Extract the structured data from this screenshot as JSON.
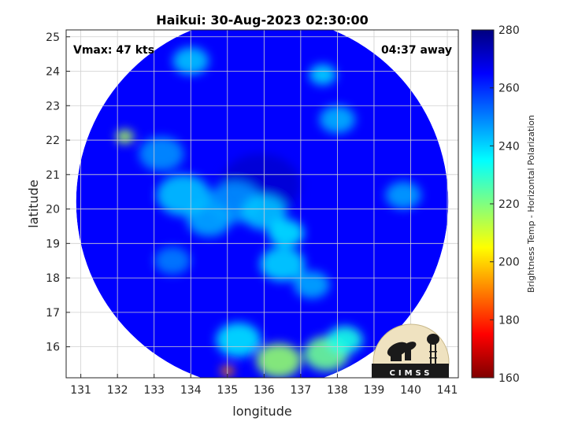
{
  "chart_data": {
    "type": "heatmap",
    "title": "Haikui: 30-Aug-2023 02:30:00",
    "xlabel": "longitude",
    "ylabel": "latitude",
    "xlim": [
      130.6,
      141.3
    ],
    "ylim": [
      15.1,
      25.2
    ],
    "x_ticks": [
      "131",
      "132",
      "133",
      "134",
      "135",
      "136",
      "137",
      "138",
      "139",
      "140",
      "141"
    ],
    "y_ticks": [
      "16",
      "17",
      "18",
      "19",
      "20",
      "21",
      "22",
      "23",
      "24",
      "25"
    ],
    "grid": true,
    "annotations": {
      "vmax": "Vmax: 47 kts",
      "away": "04:37 away"
    },
    "colorbar": {
      "label": "Brightness Temp - Horizontal Polarization",
      "range": [
        160,
        280
      ],
      "ticks": [
        "160",
        "180",
        "200",
        "220",
        "240",
        "260",
        "280"
      ],
      "colors": [
        "#7f0000",
        "#ff0000",
        "#ff8000",
        "#ffff00",
        "#80ff80",
        "#00ffff",
        "#0080ff",
        "#0000ff",
        "#00007f"
      ]
    },
    "swath": {
      "center": [
        135.95,
        20.2
      ],
      "radius_deg_lat": 5.4,
      "background_temp": 265,
      "features": [
        {
          "lon": 135.9,
          "lat": 20.7,
          "temp": 270,
          "size": 0.9
        },
        {
          "lon": 135.2,
          "lat": 20.2,
          "temp": 248,
          "size": 0.6
        },
        {
          "lon": 136.0,
          "lat": 19.9,
          "temp": 242,
          "size": 0.5
        },
        {
          "lon": 136.6,
          "lat": 19.3,
          "temp": 238,
          "size": 0.4
        },
        {
          "lon": 134.5,
          "lat": 19.7,
          "temp": 245,
          "size": 0.5
        },
        {
          "lon": 133.8,
          "lat": 20.4,
          "temp": 242,
          "size": 0.6
        },
        {
          "lon": 133.2,
          "lat": 21.6,
          "temp": 248,
          "size": 0.5
        },
        {
          "lon": 132.2,
          "lat": 22.1,
          "temp": 215,
          "size": 0.2
        },
        {
          "lon": 136.5,
          "lat": 18.4,
          "temp": 240,
          "size": 0.5
        },
        {
          "lon": 137.3,
          "lat": 17.8,
          "temp": 245,
          "size": 0.4
        },
        {
          "lon": 135.3,
          "lat": 16.2,
          "temp": 238,
          "size": 0.5
        },
        {
          "lon": 136.4,
          "lat": 15.6,
          "temp": 218,
          "size": 0.5
        },
        {
          "lon": 137.7,
          "lat": 15.8,
          "temp": 222,
          "size": 0.5
        },
        {
          "lon": 138.2,
          "lat": 16.2,
          "temp": 232,
          "size": 0.4
        },
        {
          "lon": 135.0,
          "lat": 15.3,
          "temp": 190,
          "size": 0.15
        },
        {
          "lon": 134.0,
          "lat": 24.3,
          "temp": 242,
          "size": 0.4
        },
        {
          "lon": 137.6,
          "lat": 23.9,
          "temp": 240,
          "size": 0.3
        },
        {
          "lon": 138.0,
          "lat": 22.6,
          "temp": 244,
          "size": 0.4
        },
        {
          "lon": 139.8,
          "lat": 20.4,
          "temp": 246,
          "size": 0.4
        },
        {
          "lon": 133.5,
          "lat": 18.5,
          "temp": 250,
          "size": 0.4
        }
      ]
    }
  },
  "logo": {
    "text": "CIMSS"
  }
}
